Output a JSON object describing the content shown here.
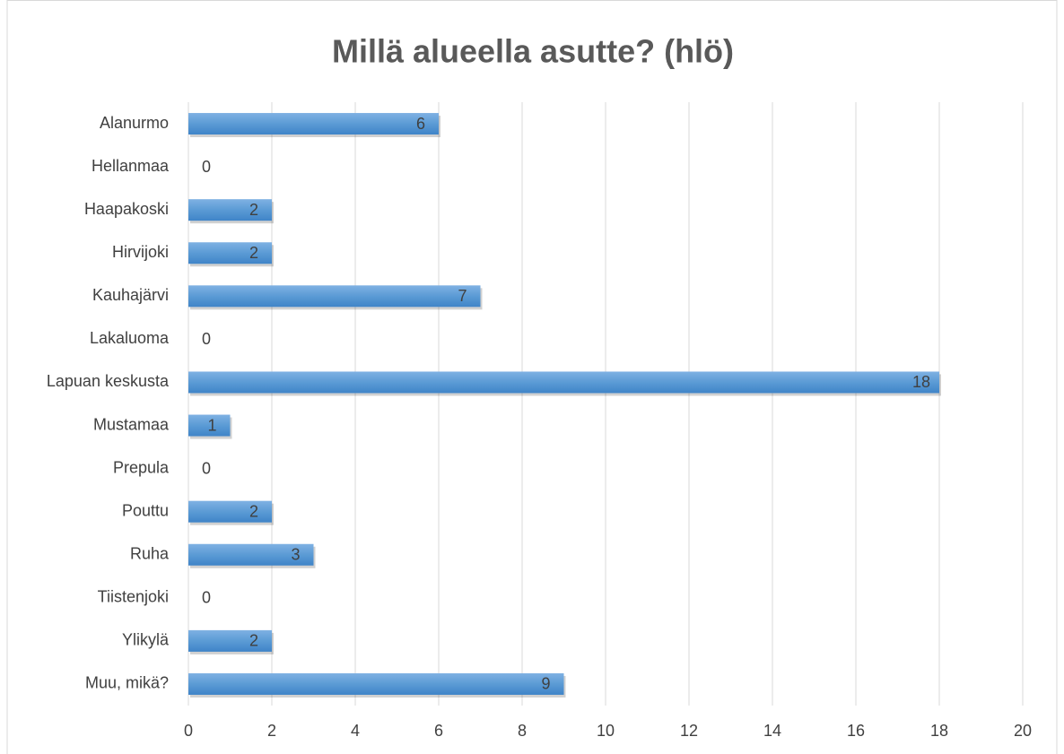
{
  "chart_data": {
    "type": "bar",
    "orientation": "horizontal",
    "title": "Millä alueella asutte? (hlö)",
    "categories": [
      "Alanurmo",
      "Hellanmaa",
      "Haapakoski",
      "Hirvijoki",
      "Kauhajärvi",
      "Lakaluoma",
      "Lapuan keskusta",
      "Mustamaa",
      "Prepula",
      "Pouttu",
      "Ruha",
      "Tiistenjoki",
      "Ylikylä",
      "Muu, mikä?"
    ],
    "values": [
      6,
      0,
      2,
      2,
      7,
      0,
      18,
      1,
      0,
      2,
      3,
      0,
      2,
      9
    ],
    "color": "#5b9bd5",
    "xlim": [
      0,
      20
    ],
    "xticks": [
      0,
      2,
      4,
      6,
      8,
      10,
      12,
      14,
      16,
      18,
      20
    ],
    "grid": true
  }
}
